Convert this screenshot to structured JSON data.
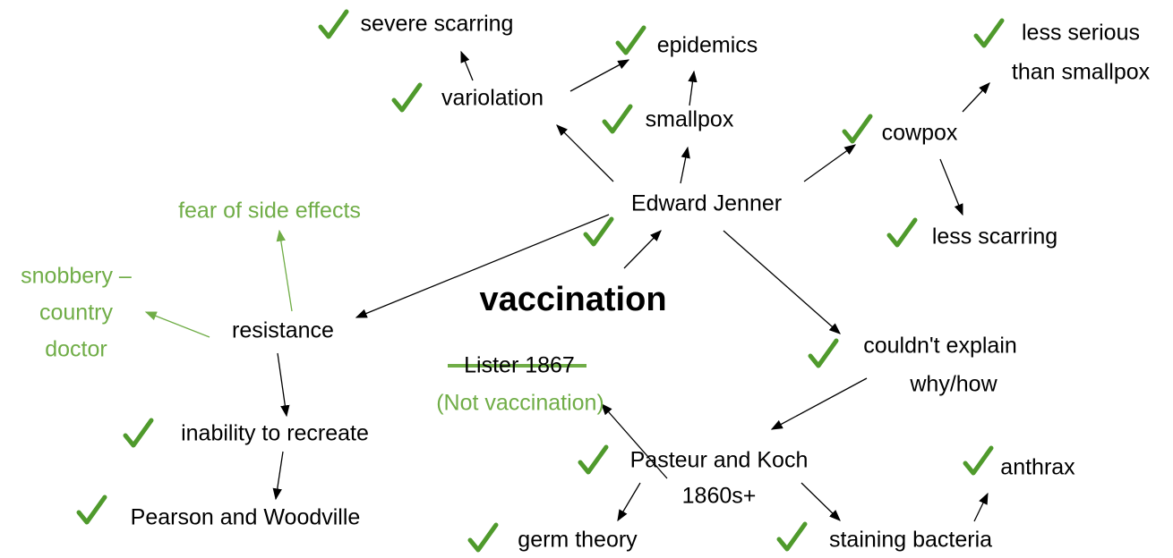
{
  "nodes": [
    {
      "lines": [
        "severe scarring"
      ]
    },
    {
      "lines": [
        "epidemics"
      ]
    },
    {
      "lines": [
        "less serious",
        "than smallpox"
      ]
    },
    {
      "lines": [
        "variolation"
      ]
    },
    {
      "lines": [
        "smallpox"
      ]
    },
    {
      "lines": [
        "cowpox"
      ]
    },
    {
      "lines": [
        "Edward Jenner"
      ]
    },
    {
      "lines": [
        "fear of side effects"
      ]
    },
    {
      "lines": [
        "less scarring"
      ]
    },
    {
      "lines": [
        "snobbery –",
        "country",
        "doctor"
      ]
    },
    {
      "lines": [
        "vaccination"
      ]
    },
    {
      "lines": [
        "resistance"
      ]
    },
    {
      "lines": [
        "couldn't explain",
        "why/how"
      ]
    },
    {
      "lines": [
        "Lister 1867"
      ]
    },
    {
      "lines": [
        "(Not vaccination)"
      ]
    },
    {
      "lines": [
        "inability to recreate"
      ]
    },
    {
      "lines": [
        "Pasteur and Koch",
        "1860s+"
      ]
    },
    {
      "lines": [
        "anthrax"
      ]
    },
    {
      "lines": [
        "Pearson and Woodville"
      ]
    },
    {
      "lines": [
        "germ theory"
      ]
    },
    {
      "lines": [
        "staining bacteria"
      ]
    }
  ]
}
